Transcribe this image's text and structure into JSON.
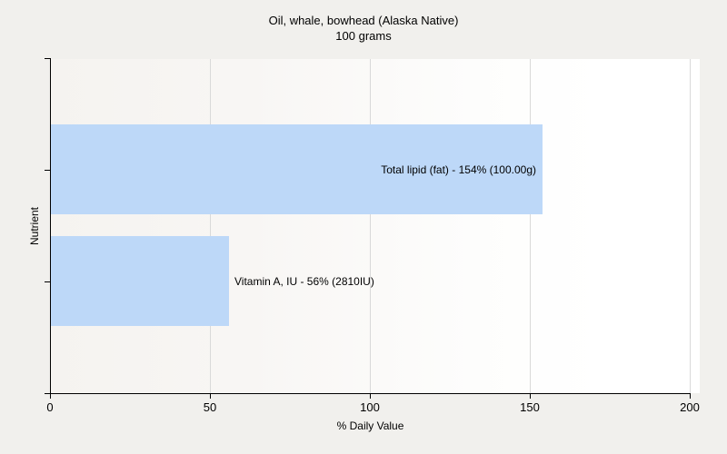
{
  "title": {
    "line1": "Oil, whale, bowhead (Alaska Native)",
    "line2": "100 grams"
  },
  "chart_data": {
    "type": "bar",
    "orientation": "horizontal",
    "title": "Oil, whale, bowhead (Alaska Native)",
    "subtitle": "100 grams",
    "xlabel": "% Daily Value",
    "ylabel": "Nutrient",
    "categories": [
      "Total lipid (fat)",
      "Vitamin A, IU"
    ],
    "values": [
      154,
      56
    ],
    "amounts": [
      "100.00g",
      "2810IU"
    ],
    "bar_labels": [
      "Total lipid (fat) - 154% (100.00g)",
      "Vitamin A, IU - 56% (2810IU)"
    ],
    "label_placements": [
      "inside-end",
      "outside-end"
    ],
    "xlim": [
      0,
      200
    ],
    "x_ticks": [
      0,
      50,
      100,
      150,
      200
    ],
    "x_tick_labels": [
      "0",
      "50",
      "100",
      "150",
      "200"
    ],
    "grid": "vertical",
    "legend": "none",
    "bar_color": "#bdd8f8",
    "gridline_color": "#d9d9d9",
    "axis_color": "#000000",
    "background_color": "#f1f0ed",
    "plot_gradient": [
      "#f5f3f0",
      "#ffffff"
    ]
  }
}
